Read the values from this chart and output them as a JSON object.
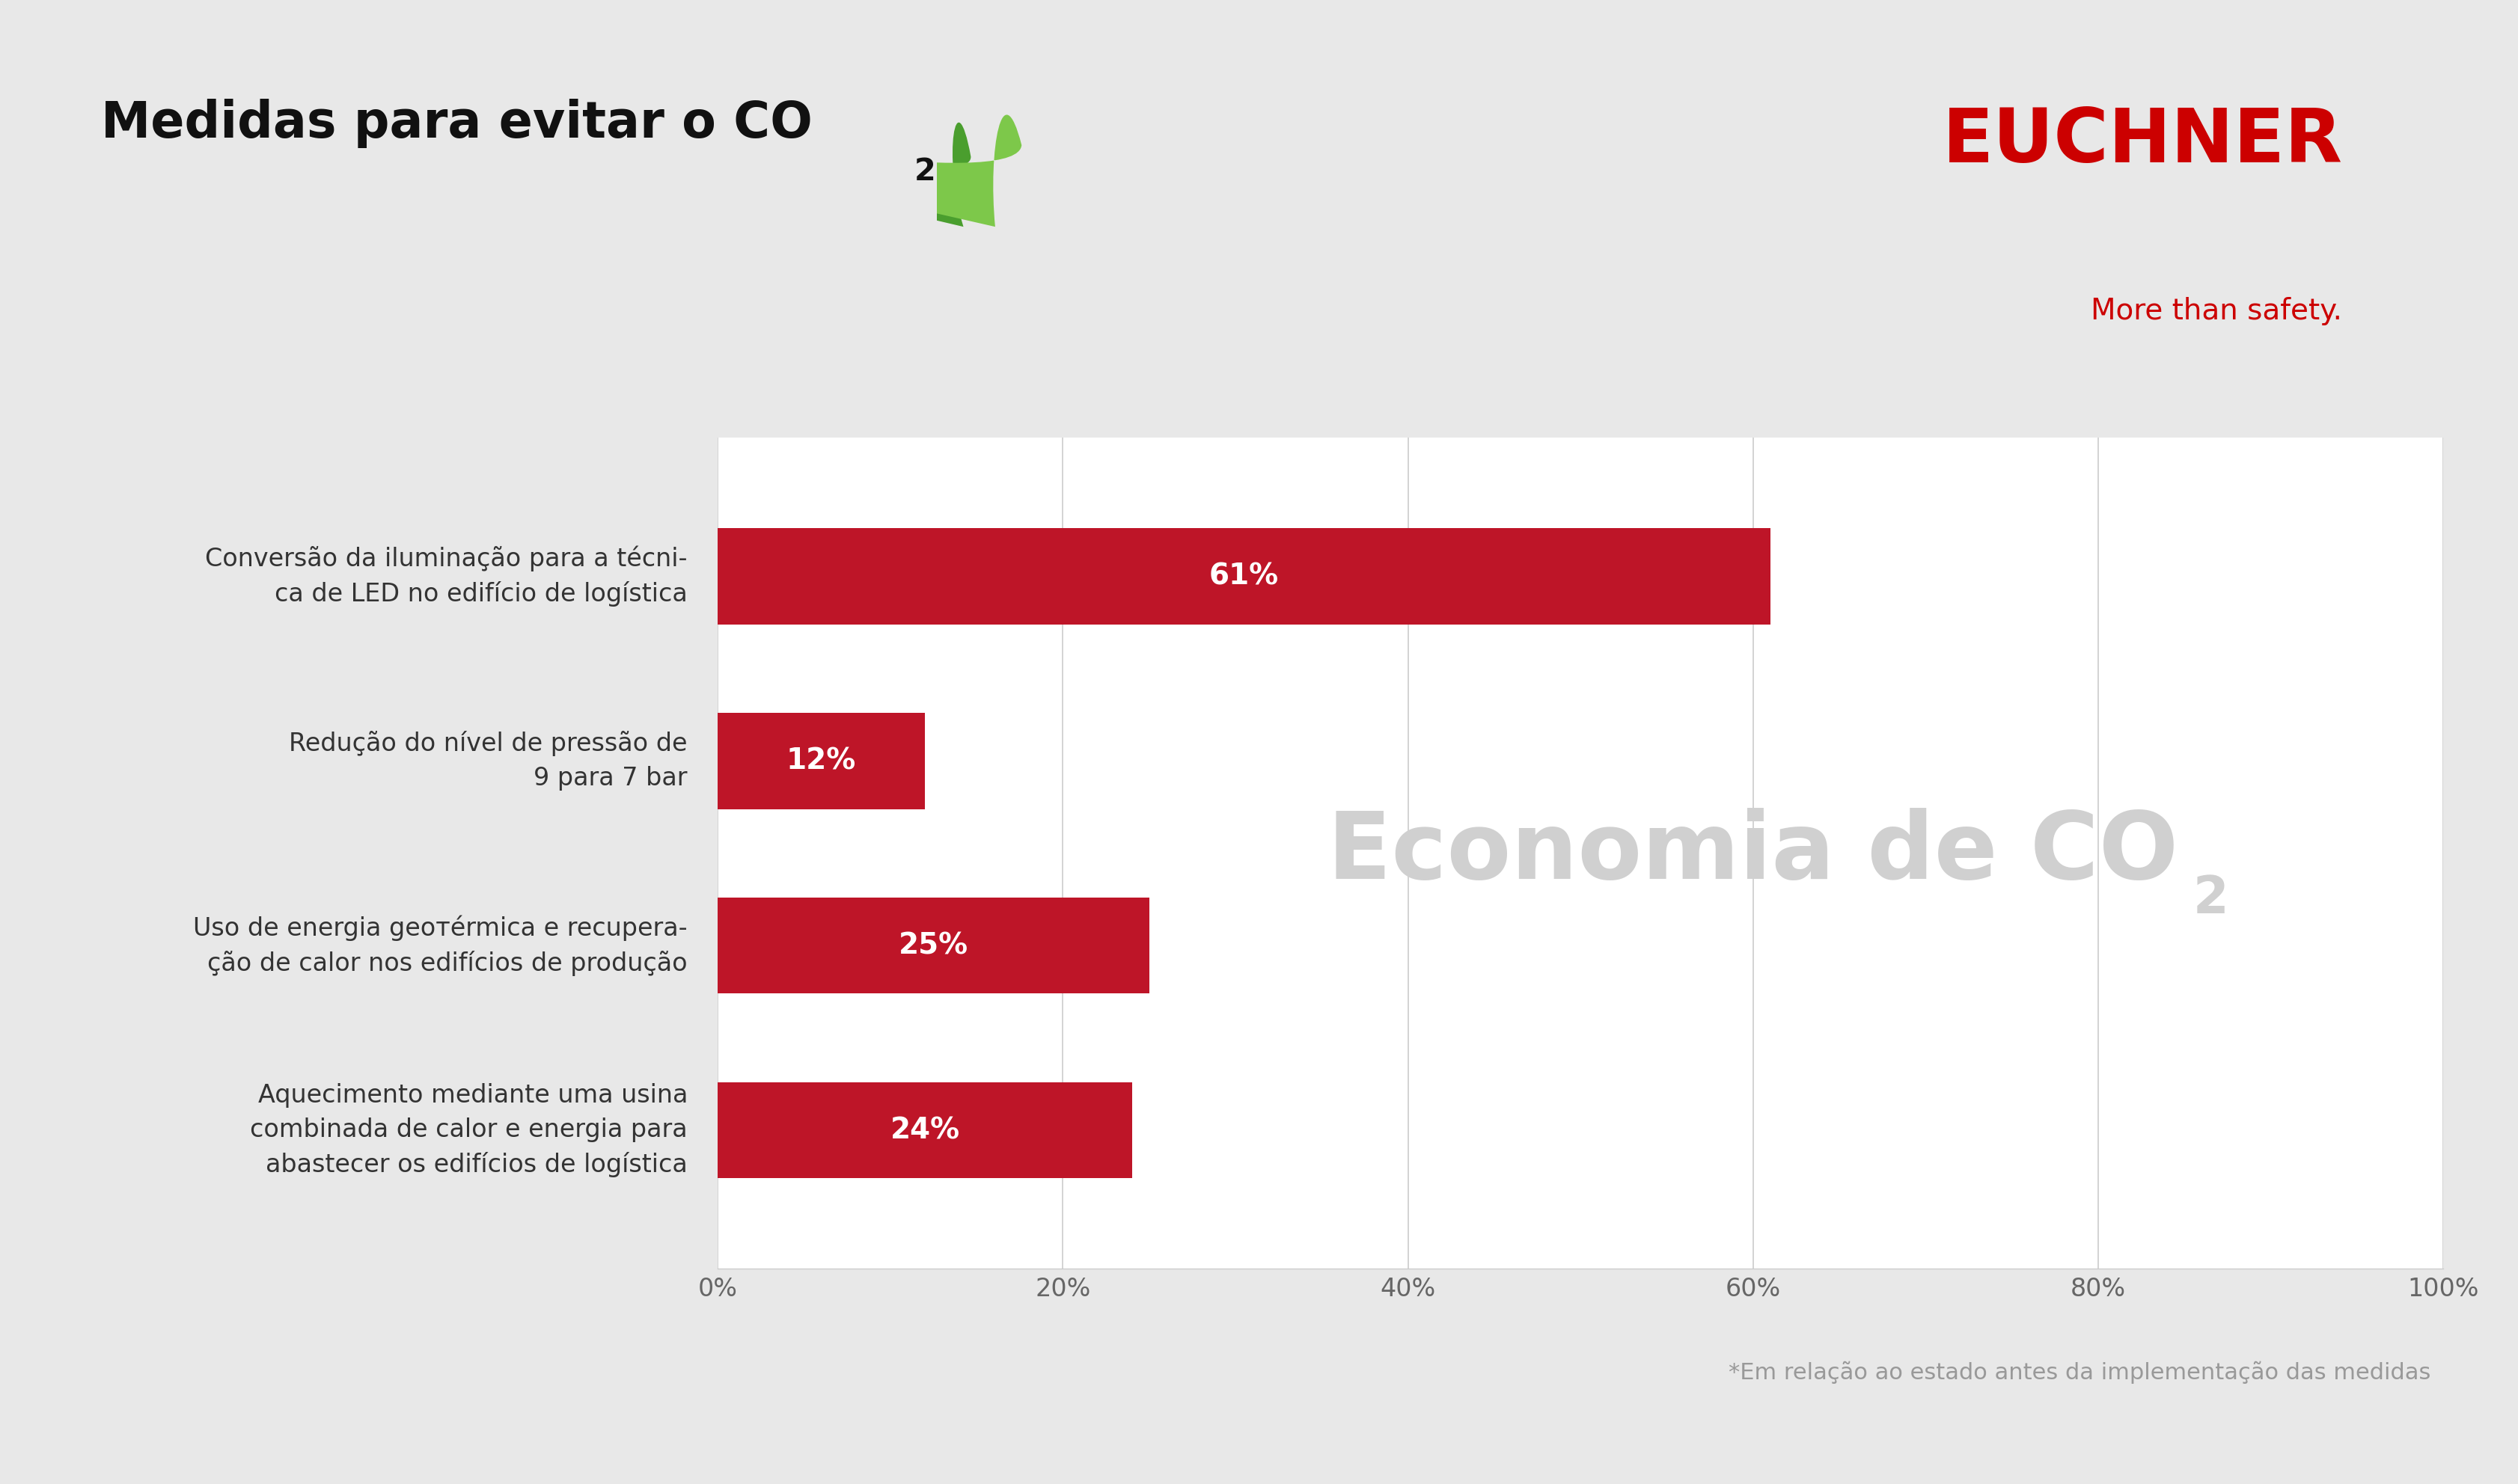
{
  "background_color": "#e8e8e8",
  "title_main": "Medidas para evitar o CO",
  "title_sub": "2",
  "title_fontsize": 48,
  "title_color": "#111111",
  "euchner_text": "EUCHNER",
  "euchner_subtitle": "More than safety.",
  "euchner_color": "#cc0000",
  "euchner_subtitle_color": "#cc0000",
  "categories": [
    "Conversão da iluminação para a técni-\nca de LED no edifício de logística",
    "Redução do nível de pressão de\n9 para 7 bar",
    "Uso de energia geoтérmica e recupera-\nção de calor nos edifícios de produção",
    "Aquecimento mediante uma usina\ncombinada de calor e energia para\nabastecer os edifícios de logística"
  ],
  "values": [
    61,
    12,
    25,
    24
  ],
  "bar_color": "#be1528",
  "bar_labels": [
    "61%",
    "12%",
    "25%",
    "24%"
  ],
  "xtick_labels": [
    "0%",
    "20%",
    "40%",
    "60%",
    "80%",
    "100%"
  ],
  "xtick_values": [
    0,
    20,
    40,
    60,
    80,
    100
  ],
  "watermark_text": "Economia de CO",
  "watermark_sub": "2",
  "watermark_color": "#d0d0d0",
  "watermark_fontsize": 90,
  "footnote": "*Em relação ao estado antes da implementação das medidas",
  "footnote_color": "#999999",
  "footnote_fontsize": 22,
  "label_fontsize": 28,
  "category_fontsize": 24,
  "tick_fontsize": 24,
  "leaf_color1": "#4a9e2e",
  "leaf_color2": "#7dc84a"
}
